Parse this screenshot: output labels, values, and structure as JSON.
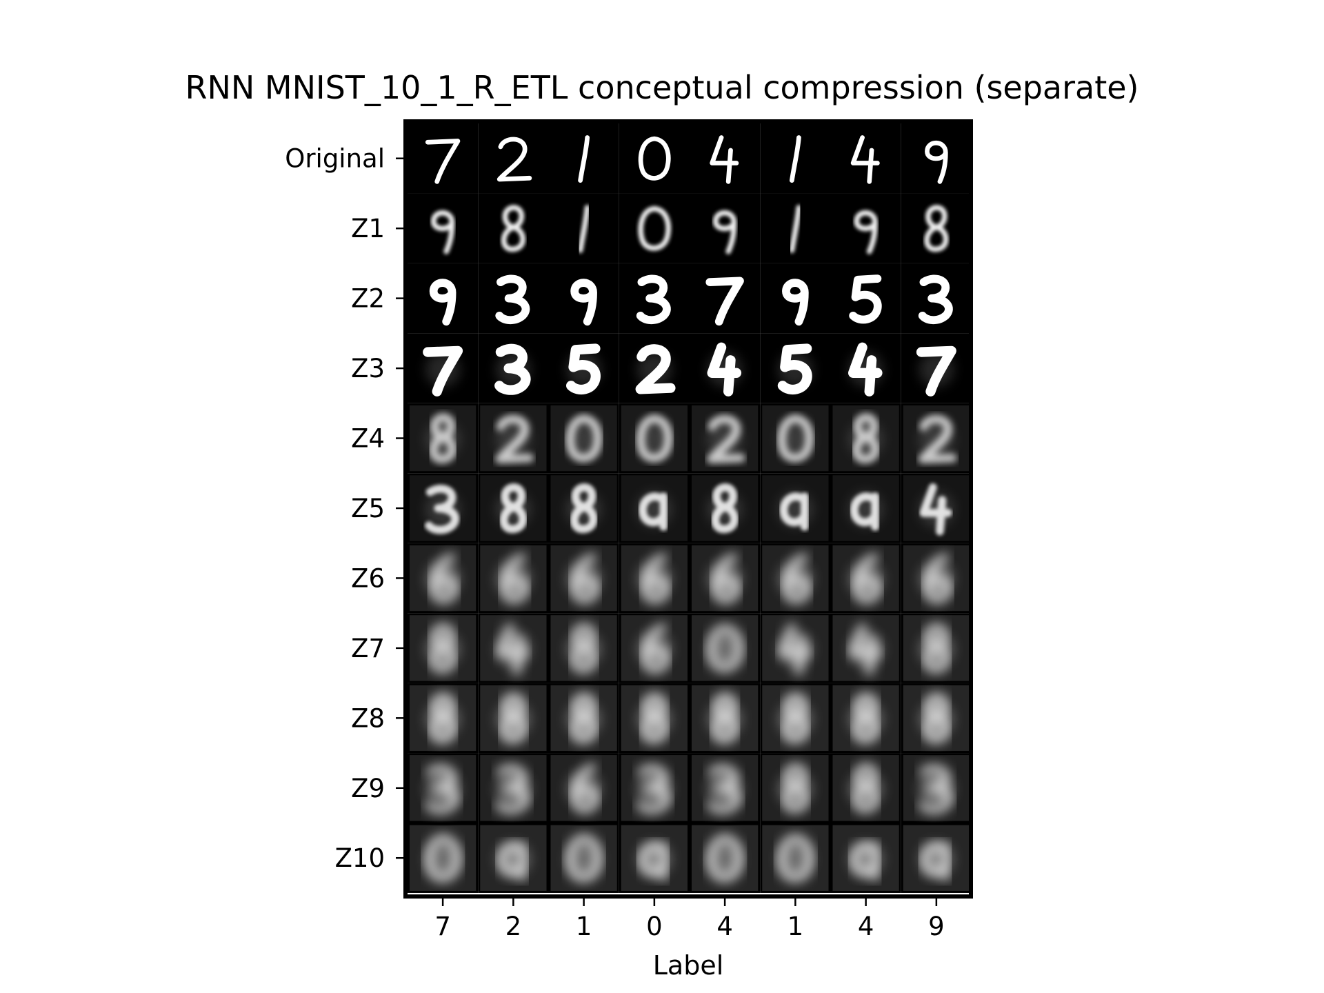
{
  "chart_data": {
    "type": "image_grid",
    "title": "RNN MNIST_10_1_R_ETL conceptual compression (separate)",
    "xlabel": "Label",
    "ylabel": "",
    "row_labels": [
      "Original",
      "Z1",
      "Z2",
      "Z3",
      "Z4",
      "Z5",
      "Z6",
      "Z7",
      "Z8",
      "Z9",
      "Z10"
    ],
    "column_labels": [
      "7",
      "2",
      "1",
      "0",
      "4",
      "1",
      "4",
      "9"
    ],
    "colormap": "grayscale",
    "grid": false
  },
  "colors": {
    "background": "#ffffff",
    "frame": "#000000",
    "text": "#000000"
  }
}
